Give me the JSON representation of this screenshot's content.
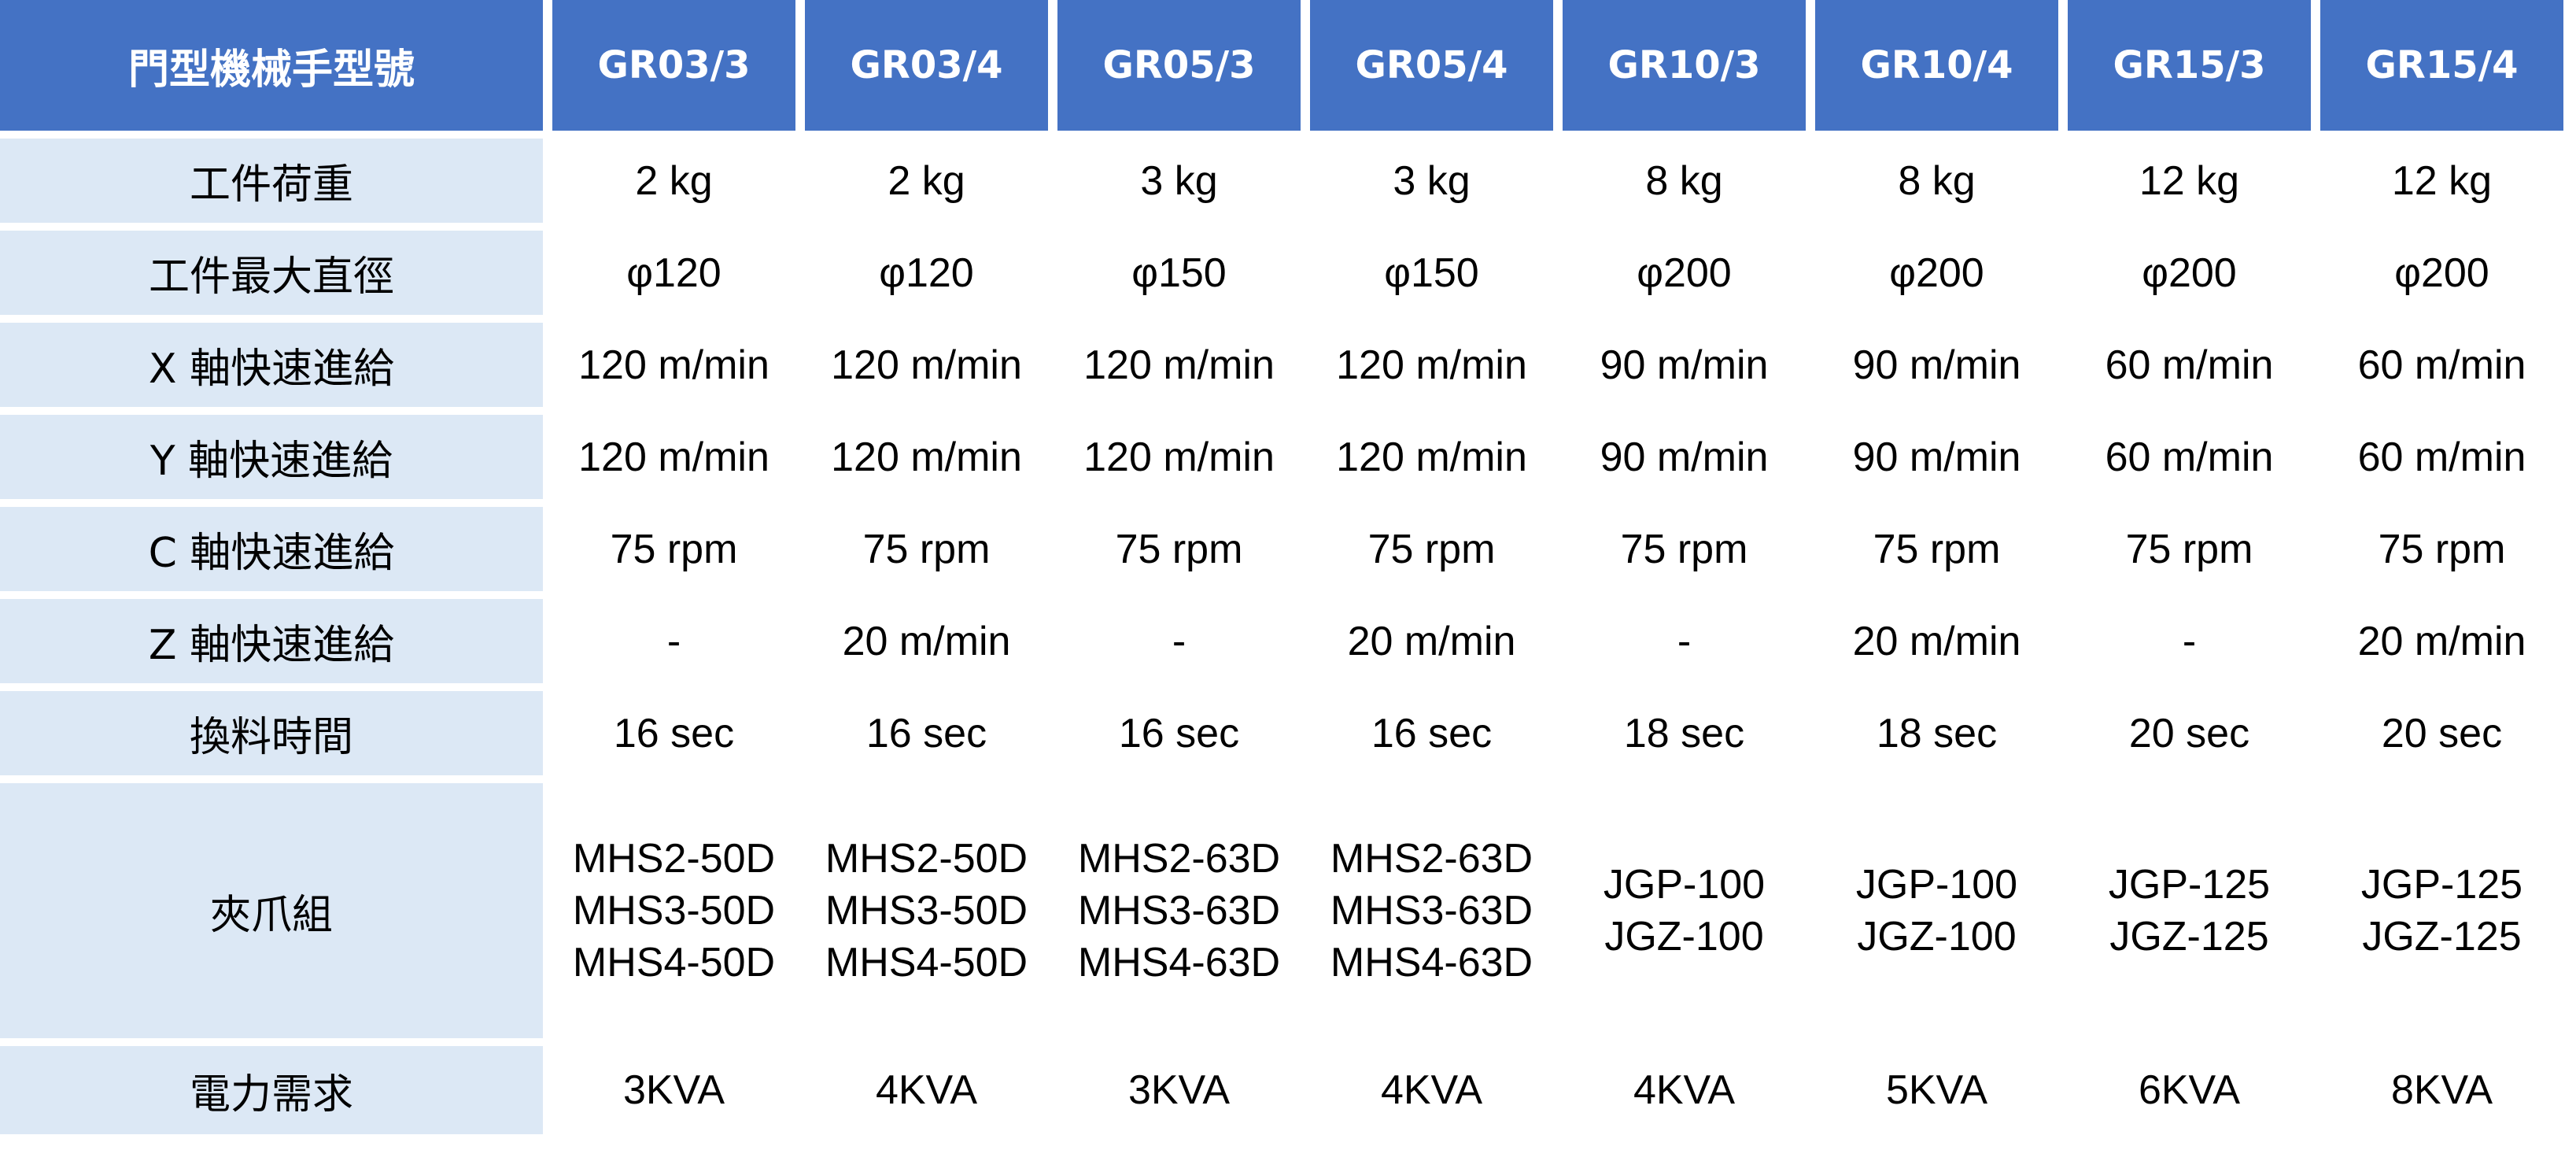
{
  "table": {
    "corner_label": "門型機械手型號",
    "models": [
      "GR03/3",
      "GR03/4",
      "GR05/3",
      "GR05/4",
      "GR10/3",
      "GR10/4",
      "GR15/3",
      "GR15/4"
    ],
    "rows": [
      {
        "label": "工件荷重",
        "values": [
          "2 kg",
          "2 kg",
          "3 kg",
          "3 kg",
          "8 kg",
          "8 kg",
          "12 kg",
          "12 kg"
        ]
      },
      {
        "label": "工件最大直徑",
        "values": [
          "φ120",
          "φ120",
          "φ150",
          "φ150",
          "φ200",
          "φ200",
          "φ200",
          "φ200"
        ]
      },
      {
        "label": "X 軸快速進給",
        "values": [
          "120 m/min",
          "120 m/min",
          "120 m/min",
          "120 m/min",
          "90 m/min",
          "90 m/min",
          "60 m/min",
          "60 m/min"
        ]
      },
      {
        "label": "Y 軸快速進給",
        "values": [
          "120 m/min",
          "120 m/min",
          "120 m/min",
          "120 m/min",
          "90 m/min",
          "90 m/min",
          "60 m/min",
          "60 m/min"
        ]
      },
      {
        "label": "C 軸快速進給",
        "values": [
          "75 rpm",
          "75 rpm",
          "75 rpm",
          "75 rpm",
          "75 rpm",
          "75 rpm",
          "75 rpm",
          "75 rpm"
        ]
      },
      {
        "label": "Z 軸快速進給",
        "values": [
          "-",
          "20 m/min",
          "-",
          "20 m/min",
          "-",
          "20 m/min",
          "-",
          "20 m/min"
        ]
      },
      {
        "label": "換料時間",
        "values": [
          "16 sec",
          "16 sec",
          "16 sec",
          "16 sec",
          "18 sec",
          "18 sec",
          "20 sec",
          "20 sec"
        ]
      },
      {
        "label": "夾爪組",
        "values": [
          [
            "MHS2-50D",
            "MHS3-50D",
            "MHS4-50D"
          ],
          [
            "MHS2-50D",
            "MHS3-50D",
            "MHS4-50D"
          ],
          [
            "MHS2-63D",
            "MHS3-63D",
            "MHS4-63D"
          ],
          [
            "MHS2-63D",
            "MHS3-63D",
            "MHS4-63D"
          ],
          [
            "JGP-100",
            "JGZ-100"
          ],
          [
            "JGP-100",
            "JGZ-100"
          ],
          [
            "JGP-125",
            "JGZ-125"
          ],
          [
            "JGP-125",
            "JGZ-125"
          ]
        ]
      },
      {
        "label": "電力需求",
        "values": [
          "3KVA",
          "4KVA",
          "3KVA",
          "4KVA",
          "4KVA",
          "5KVA",
          "6KVA",
          "8KVA"
        ]
      }
    ]
  },
  "colors": {
    "header_bg": "#4472c4",
    "header_text": "#ffffff",
    "label_bg": "#dce8f5",
    "cell_text": "#000000"
  }
}
